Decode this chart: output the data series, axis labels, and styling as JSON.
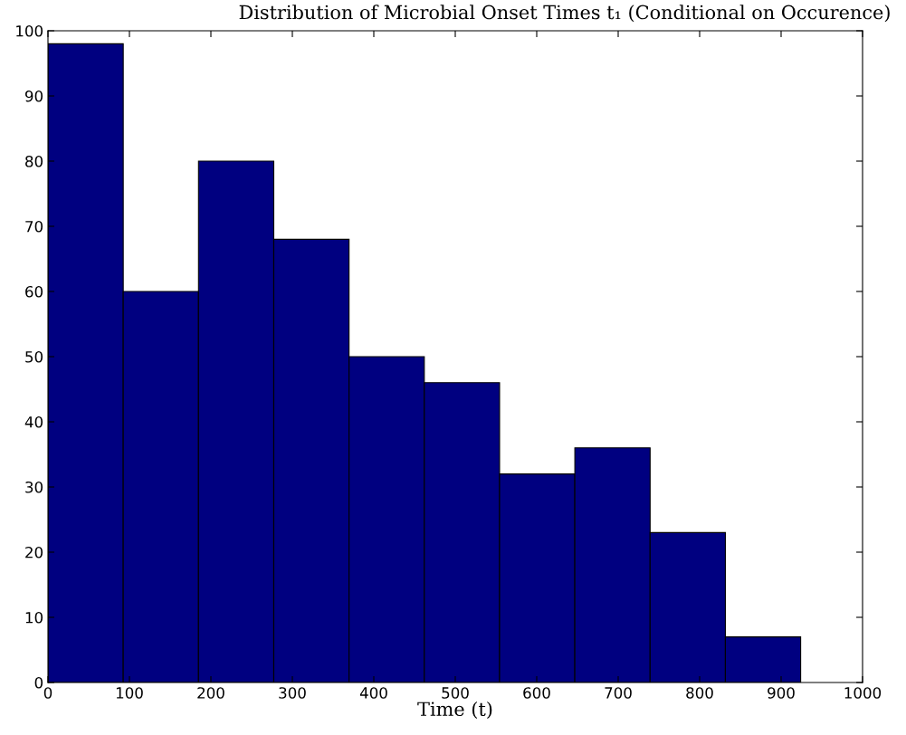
{
  "chart_data": {
    "type": "histogram",
    "title": "Distribution of Microbial Onset Times t₁ (Conditional on Occurence)",
    "xlabel": "Time (t)",
    "bins": [
      0,
      92.4,
      184.8,
      277.2,
      369.6,
      462,
      554.4,
      646.8,
      739.2,
      831.6,
      924
    ],
    "values": [
      98,
      60,
      80,
      68,
      50,
      46,
      32,
      36,
      23,
      7
    ],
    "color": "#000080",
    "xlim": [
      0,
      1000
    ],
    "xticks": [
      0,
      100,
      200,
      300,
      400,
      500,
      600,
      700,
      800,
      900,
      1000
    ],
    "ylim": [
      0,
      100
    ],
    "yticks": [
      0,
      10,
      20,
      30,
      40,
      50,
      60,
      70,
      80,
      90,
      100
    ],
    "grid": false
  }
}
